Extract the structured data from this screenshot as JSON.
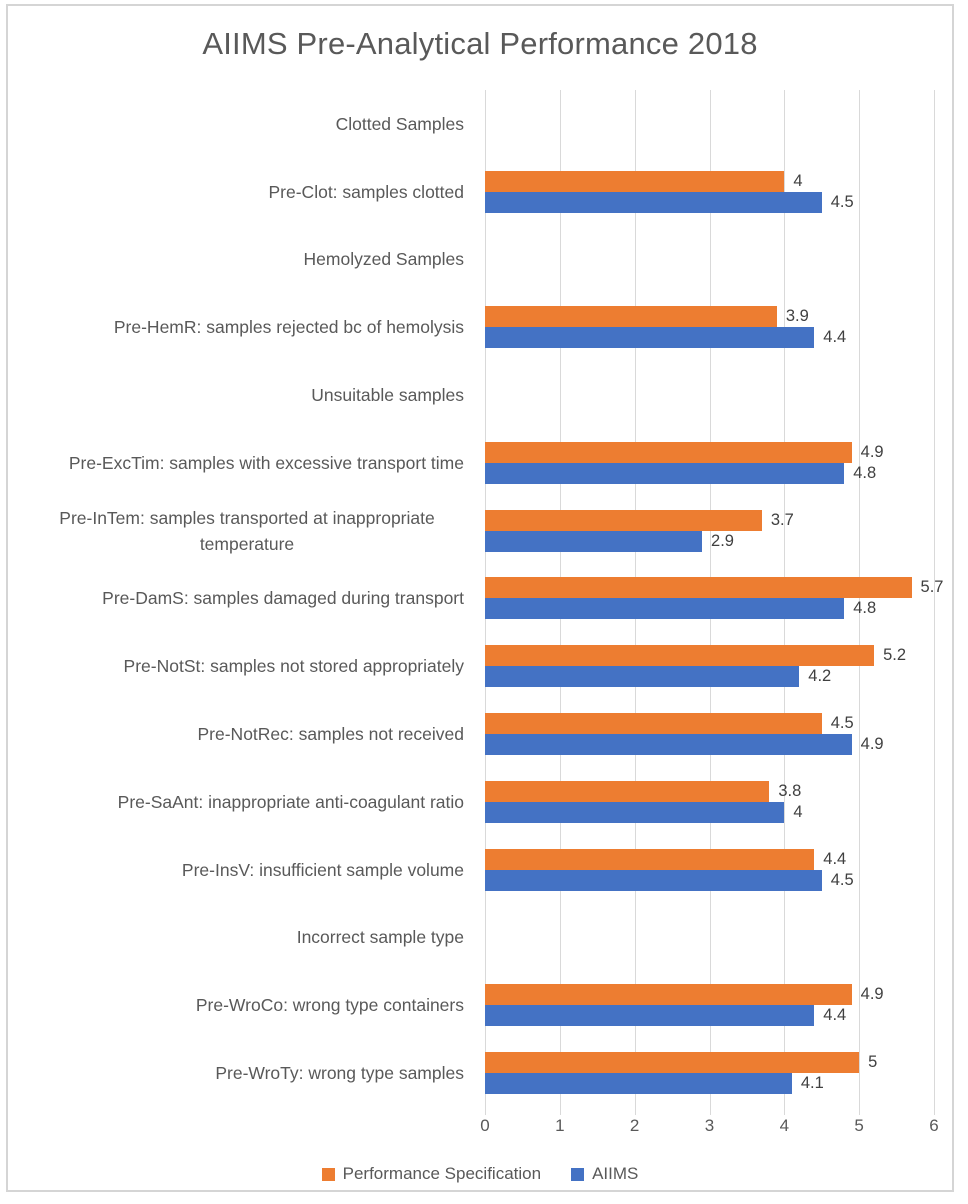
{
  "title": "AIIMS Pre-Analytical Performance 2018",
  "colors": {
    "performance_specification": "#ED7D31",
    "aiims": "#4472C4",
    "gridline": "#D9D9D9",
    "axis_text": "#595959",
    "value_label_text": "#404040",
    "frame_border": "#D5D5D5"
  },
  "chart_data": {
    "type": "bar",
    "orientation": "horizontal",
    "title": "AIIMS Pre-Analytical Performance 2018",
    "categories": [
      "Clotted Samples",
      "Pre-Clot: samples clotted",
      "Hemolyzed Samples",
      "Pre-HemR: samples rejected bc of hemolysis",
      "Unsuitable samples",
      "Pre-ExcTim: samples with excessive transport time",
      "Pre-InTem: samples transported at inappropriate temperature",
      "Pre-DamS: samples damaged during transport",
      "Pre-NotSt: samples not stored appropriately",
      "Pre-NotRec: samples not received",
      "Pre-SaAnt: inappropriate anti-coagulant ratio",
      "Pre-InsV: insufficient sample volume",
      "Incorrect sample type",
      "Pre-WroCo: wrong type containers",
      "Pre-WroTy: wrong type samples"
    ],
    "series": [
      {
        "name": "Performance Specification",
        "color": "#ED7D31",
        "values": [
          null,
          4,
          null,
          3.9,
          null,
          4.9,
          3.7,
          5.7,
          5.2,
          4.5,
          3.8,
          4.4,
          null,
          4.9,
          5
        ]
      },
      {
        "name": "AIIMS",
        "color": "#4472C4",
        "values": [
          null,
          4.5,
          null,
          4.4,
          null,
          4.8,
          2.9,
          4.8,
          4.2,
          4.9,
          4,
          4.5,
          null,
          4.4,
          4.1
        ]
      }
    ],
    "xlim": [
      0,
      6
    ],
    "x_ticks": [
      0,
      1,
      2,
      3,
      4,
      5,
      6
    ],
    "grid": true,
    "data_labels": true,
    "legend_position": "bottom"
  },
  "legend": {
    "items": [
      {
        "label": "Performance Specification",
        "color": "#ED7D31"
      },
      {
        "label": "AIIMS",
        "color": "#4472C4"
      }
    ]
  }
}
